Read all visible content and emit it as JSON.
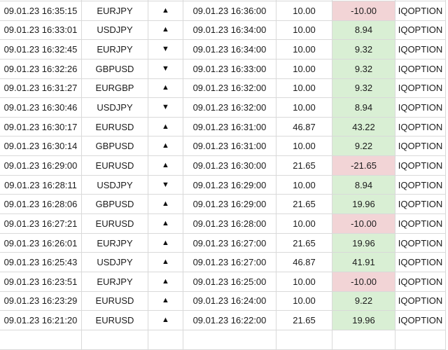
{
  "table": {
    "columns": [
      "open_time",
      "symbol",
      "direction",
      "close_time",
      "amount",
      "profit",
      "broker"
    ],
    "icons": {
      "up": "▲",
      "down": "▼"
    },
    "colors": {
      "profit_positive_bg": "#d9efd4",
      "profit_negative_bg": "#f2d4d6",
      "border": "#d9d9d9",
      "text": "#1b1b1b"
    },
    "rows": [
      {
        "open_time": "09.01.23 16:35:15",
        "symbol": "EURJPY",
        "direction": "up",
        "close_time": "09.01.23 16:36:00",
        "amount": "10.00",
        "profit": "-10.00",
        "broker": "IQOPTION"
      },
      {
        "open_time": "09.01.23 16:33:01",
        "symbol": "USDJPY",
        "direction": "up",
        "close_time": "09.01.23 16:34:00",
        "amount": "10.00",
        "profit": "8.94",
        "broker": "IQOPTION"
      },
      {
        "open_time": "09.01.23 16:32:45",
        "symbol": "EURJPY",
        "direction": "down",
        "close_time": "09.01.23 16:34:00",
        "amount": "10.00",
        "profit": "9.32",
        "broker": "IQOPTION"
      },
      {
        "open_time": "09.01.23 16:32:26",
        "symbol": "GBPUSD",
        "direction": "down",
        "close_time": "09.01.23 16:33:00",
        "amount": "10.00",
        "profit": "9.32",
        "broker": "IQOPTION"
      },
      {
        "open_time": "09.01.23 16:31:27",
        "symbol": "EURGBP",
        "direction": "up",
        "close_time": "09.01.23 16:32:00",
        "amount": "10.00",
        "profit": "9.32",
        "broker": "IQOPTION"
      },
      {
        "open_time": "09.01.23 16:30:46",
        "symbol": "USDJPY",
        "direction": "down",
        "close_time": "09.01.23 16:32:00",
        "amount": "10.00",
        "profit": "8.94",
        "broker": "IQOPTION"
      },
      {
        "open_time": "09.01.23 16:30:17",
        "symbol": "EURUSD",
        "direction": "up",
        "close_time": "09.01.23 16:31:00",
        "amount": "46.87",
        "profit": "43.22",
        "broker": "IQOPTION"
      },
      {
        "open_time": "09.01.23 16:30:14",
        "symbol": "GBPUSD",
        "direction": "up",
        "close_time": "09.01.23 16:31:00",
        "amount": "10.00",
        "profit": "9.22",
        "broker": "IQOPTION"
      },
      {
        "open_time": "09.01.23 16:29:00",
        "symbol": "EURUSD",
        "direction": "up",
        "close_time": "09.01.23 16:30:00",
        "amount": "21.65",
        "profit": "-21.65",
        "broker": "IQOPTION"
      },
      {
        "open_time": "09.01.23 16:28:11",
        "symbol": "USDJPY",
        "direction": "down",
        "close_time": "09.01.23 16:29:00",
        "amount": "10.00",
        "profit": "8.94",
        "broker": "IQOPTION"
      },
      {
        "open_time": "09.01.23 16:28:06",
        "symbol": "GBPUSD",
        "direction": "up",
        "close_time": "09.01.23 16:29:00",
        "amount": "21.65",
        "profit": "19.96",
        "broker": "IQOPTION"
      },
      {
        "open_time": "09.01.23 16:27:21",
        "symbol": "EURUSD",
        "direction": "up",
        "close_time": "09.01.23 16:28:00",
        "amount": "10.00",
        "profit": "-10.00",
        "broker": "IQOPTION"
      },
      {
        "open_time": "09.01.23 16:26:01",
        "symbol": "EURJPY",
        "direction": "up",
        "close_time": "09.01.23 16:27:00",
        "amount": "21.65",
        "profit": "19.96",
        "broker": "IQOPTION"
      },
      {
        "open_time": "09.01.23 16:25:43",
        "symbol": "USDJPY",
        "direction": "up",
        "close_time": "09.01.23 16:27:00",
        "amount": "46.87",
        "profit": "41.91",
        "broker": "IQOPTION"
      },
      {
        "open_time": "09.01.23 16:23:51",
        "symbol": "EURJPY",
        "direction": "up",
        "close_time": "09.01.23 16:25:00",
        "amount": "10.00",
        "profit": "-10.00",
        "broker": "IQOPTION"
      },
      {
        "open_time": "09.01.23 16:23:29",
        "symbol": "EURUSD",
        "direction": "up",
        "close_time": "09.01.23 16:24:00",
        "amount": "10.00",
        "profit": "9.22",
        "broker": "IQOPTION"
      },
      {
        "open_time": "09.01.23 16:21:20",
        "symbol": "EURUSD",
        "direction": "up",
        "close_time": "09.01.23 16:22:00",
        "amount": "21.65",
        "profit": "19.96",
        "broker": "IQOPTION"
      }
    ]
  }
}
